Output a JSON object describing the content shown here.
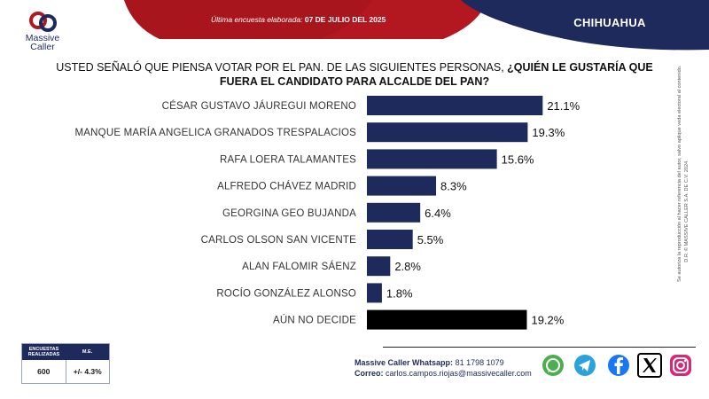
{
  "header": {
    "last_survey_prefix": "Última encuesta elaborada: ",
    "last_survey_date": "07 DE JULIO DEL 2025",
    "region": "CHIHUAHUA",
    "colors": {
      "red": "#b3171f",
      "navy": "#1f2a5c"
    }
  },
  "logo": {
    "name": "Massive Caller"
  },
  "question": {
    "plain": "USTED SEÑALÓ QUE PIENSA VOTAR POR EL PAN. DE LAS SIGUIENTES PERSONAS, ",
    "bold": "¿QUIÉN LE GUSTARÍA QUE FUERA EL CANDIDATO PARA ALCALDE DEL PAN?"
  },
  "chart_data": {
    "type": "bar",
    "orientation": "horizontal",
    "categories": [
      "CÉSAR GUSTAVO JÁUREGUI MORENO",
      "MANQUE MARÍA ANGELICA GRANADOS TRESPALACIOS",
      "RAFA LOERA TALAMANTES",
      "ALFREDO CHÁVEZ MADRID",
      "GEORGINA GEO BUJANDA",
      "CARLOS OLSON SAN VICENTE",
      "ALAN FALOMIR SÁENZ",
      "ROCÍO GONZÁLEZ ALONSO",
      "AÚN NO DECIDE"
    ],
    "values": [
      21.1,
      19.3,
      15.6,
      8.3,
      6.4,
      5.5,
      2.8,
      1.8,
      19.2
    ],
    "value_labels": [
      "21.1%",
      "19.3%",
      "15.6%",
      "8.3%",
      "6.4%",
      "5.5%",
      "2.8%",
      "1.8%",
      "19.2%"
    ],
    "colors": [
      "#1f2a5c",
      "#1f2a5c",
      "#1f2a5c",
      "#1f2a5c",
      "#1f2a5c",
      "#1f2a5c",
      "#1f2a5c",
      "#1f2a5c",
      "#000000"
    ],
    "xlim": [
      0,
      25
    ],
    "unit": "%"
  },
  "side_note": {
    "line1": "D.R. © MASSIVE CALLER S.A. DE C.V. 2024.",
    "line2": "Se autoriza la reproducción al hacer referencia del autor, salvo aplique veda electoral al contenido."
  },
  "stats": {
    "surveys_label": "ENCUESTAS REALIZADAS",
    "me_label": "M.E.",
    "surveys_value": "600",
    "me_value": "+/- 4.3%"
  },
  "contact": {
    "whatsapp_label": "Massive Caller Whatsapp:",
    "whatsapp_value": "81 1798 1079",
    "email_label": "Correo:",
    "email_value": "carlos.campos.riojas@massivecaller.com"
  },
  "social": [
    {
      "icon": "whatsapp-icon",
      "color": "#4cae4f"
    },
    {
      "icon": "telegram-icon",
      "color": "#2aa3dd"
    },
    {
      "icon": "facebook-icon",
      "color": "#1877f2"
    },
    {
      "icon": "x-icon",
      "color": "#000000"
    },
    {
      "icon": "instagram-icon",
      "color": "#d62976"
    }
  ]
}
